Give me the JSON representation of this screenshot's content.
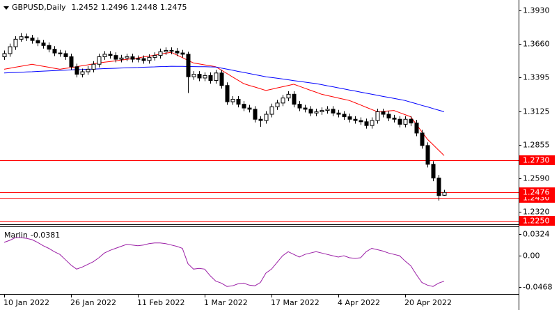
{
  "chart_data": {
    "type": "candlestick",
    "title": "GBPUSD,Daily",
    "categories": [
      "10 Jan 2022",
      null,
      null,
      null,
      null,
      null,
      null,
      null,
      null,
      null,
      null,
      null,
      "26 Jan 2022",
      null,
      null,
      null,
      null,
      null,
      null,
      null,
      null,
      null,
      null,
      null,
      "11 Feb 2022",
      null,
      null,
      null,
      null,
      null,
      null,
      null,
      null,
      null,
      null,
      null,
      "1 Mar 2022",
      null,
      null,
      null,
      null,
      null,
      null,
      null,
      null,
      null,
      null,
      null,
      "17 Mar 2022",
      null,
      null,
      null,
      null,
      null,
      null,
      null,
      null,
      null,
      null,
      null,
      "4 Apr 2022",
      null,
      null,
      null,
      null,
      null,
      null,
      null,
      null,
      null,
      null,
      null,
      "20 Apr 2022",
      null,
      null,
      null,
      null,
      null,
      null,
      null
    ],
    "open": [
      1.356,
      1.3585,
      1.364,
      1.37,
      1.372,
      1.371,
      1.369,
      1.367,
      1.365,
      1.362,
      1.359,
      1.3585,
      1.356,
      1.348,
      1.342,
      1.344,
      1.346,
      1.35,
      1.356,
      1.358,
      1.357,
      1.354,
      1.355,
      1.356,
      1.354,
      1.3545,
      1.353,
      1.3555,
      1.357,
      1.36,
      1.361,
      1.3605,
      1.359,
      1.358,
      1.34,
      1.342,
      1.339,
      1.341,
      1.337,
      1.343,
      1.333,
      1.32,
      1.322,
      1.318,
      1.315,
      1.314,
      1.306,
      1.305,
      1.31,
      1.316,
      1.319,
      1.323,
      1.326,
      1.318,
      1.315,
      1.314,
      1.311,
      1.312,
      1.313,
      1.314,
      1.311,
      1.31,
      1.308,
      1.306,
      1.305,
      1.304,
      1.301,
      1.305,
      1.312,
      1.31,
      1.307,
      1.306,
      1.302,
      1.306,
      1.303,
      1.295,
      1.285,
      1.27,
      1.259,
      1.2452
    ],
    "high": [
      1.361,
      1.3665,
      1.3725,
      1.375,
      1.3745,
      1.3735,
      1.3715,
      1.3695,
      1.3675,
      1.3645,
      1.3615,
      1.361,
      1.3585,
      1.3505,
      1.3465,
      1.3485,
      1.3525,
      1.3585,
      1.3605,
      1.3605,
      1.3595,
      1.3575,
      1.3585,
      1.3585,
      1.357,
      1.357,
      1.358,
      1.3595,
      1.3625,
      1.3635,
      1.3635,
      1.363,
      1.3615,
      1.36,
      1.3445,
      1.3445,
      1.3435,
      1.3435,
      1.3455,
      1.3455,
      1.3355,
      1.3245,
      1.3245,
      1.3205,
      1.3175,
      1.3165,
      1.3085,
      1.3125,
      1.3185,
      1.3215,
      1.3255,
      1.3285,
      1.3285,
      1.3205,
      1.3175,
      1.3165,
      1.3145,
      1.3155,
      1.3165,
      1.3165,
      1.3135,
      1.3125,
      1.3105,
      1.3085,
      1.3075,
      1.3065,
      1.3075,
      1.3145,
      1.3145,
      1.3125,
      1.3095,
      1.3085,
      1.3085,
      1.3085,
      1.3055,
      1.2975,
      1.2875,
      1.2725,
      1.2615,
      1.2496
    ],
    "low": [
      1.3535,
      1.356,
      1.3615,
      1.368,
      1.3685,
      1.3665,
      1.3645,
      1.3625,
      1.3595,
      1.3565,
      1.356,
      1.3535,
      1.3455,
      1.3395,
      1.3395,
      1.3415,
      1.3435,
      1.3475,
      1.3535,
      1.3545,
      1.3515,
      1.3515,
      1.3525,
      1.3515,
      1.3515,
      1.3505,
      1.3505,
      1.353,
      1.3545,
      1.3575,
      1.358,
      1.3565,
      1.3555,
      1.327,
      1.3375,
      1.3365,
      1.3365,
      1.3345,
      1.3345,
      1.3305,
      1.3175,
      1.3175,
      1.3155,
      1.3125,
      1.3115,
      1.3035,
      1.3,
      1.3025,
      1.3075,
      1.3135,
      1.3165,
      1.3205,
      1.3155,
      1.3125,
      1.3115,
      1.3085,
      1.3085,
      1.3095,
      1.3105,
      1.3085,
      1.3075,
      1.3055,
      1.3035,
      1.3025,
      1.3015,
      1.2985,
      1.2985,
      1.3025,
      1.3075,
      1.3045,
      1.3035,
      1.2995,
      1.2995,
      1.3005,
      1.2925,
      1.2825,
      1.2675,
      1.2565,
      1.241,
      1.2448
    ],
    "close": [
      1.3585,
      1.364,
      1.37,
      1.372,
      1.371,
      1.369,
      1.367,
      1.365,
      1.362,
      1.359,
      1.3585,
      1.356,
      1.348,
      1.342,
      1.344,
      1.346,
      1.35,
      1.356,
      1.358,
      1.357,
      1.354,
      1.355,
      1.356,
      1.354,
      1.3545,
      1.353,
      1.3555,
      1.357,
      1.36,
      1.361,
      1.3605,
      1.359,
      1.358,
      1.34,
      1.342,
      1.339,
      1.341,
      1.337,
      1.343,
      1.333,
      1.32,
      1.322,
      1.318,
      1.315,
      1.314,
      1.306,
      1.305,
      1.31,
      1.316,
      1.319,
      1.323,
      1.326,
      1.318,
      1.315,
      1.314,
      1.311,
      1.312,
      1.313,
      1.314,
      1.311,
      1.31,
      1.308,
      1.306,
      1.305,
      1.304,
      1.301,
      1.305,
      1.312,
      1.31,
      1.307,
      1.306,
      1.302,
      1.306,
      1.303,
      1.295,
      1.285,
      1.27,
      1.259,
      1.245,
      1.2475
    ],
    "up_color": "#ffffff",
    "down_color": "#000000",
    "lines": [
      {
        "color": "#ff0000",
        "values": [
          1.346,
          1.3468,
          1.3476,
          1.3484,
          1.3492,
          1.35,
          1.3492,
          1.3484,
          1.3476,
          1.3468,
          1.346,
          1.3467,
          1.3473,
          1.348,
          1.3488,
          1.3495,
          1.3503,
          1.351,
          1.3516,
          1.3521,
          1.3527,
          1.3533,
          1.3539,
          1.3544,
          1.355,
          1.3558,
          1.3565,
          1.3573,
          1.358,
          1.3588,
          1.3595,
          1.3574,
          1.3553,
          1.3531,
          1.351,
          1.3503,
          1.3495,
          1.3488,
          1.348,
          1.3453,
          1.3426,
          1.3399,
          1.3372,
          1.3345,
          1.3331,
          1.3318,
          1.3304,
          1.329,
          1.33,
          1.331,
          1.332,
          1.333,
          1.334,
          1.3324,
          1.3308,
          1.3292,
          1.3276,
          1.326,
          1.325,
          1.324,
          1.323,
          1.322,
          1.321,
          1.3192,
          1.3174,
          1.3156,
          1.3138,
          1.312,
          1.3123,
          1.3127,
          1.313,
          1.3113,
          1.3097,
          1.308,
          1.302,
          1.296,
          1.29,
          1.2857,
          1.2813,
          1.277
        ]
      },
      {
        "color": "#0000ff",
        "values": [
          1.343,
          1.3432,
          1.3434,
          1.3436,
          1.3438,
          1.344,
          1.3443,
          1.3445,
          1.3447,
          1.3449,
          1.3451,
          1.3453,
          1.3455,
          1.3457,
          1.3458,
          1.346,
          1.3461,
          1.3463,
          1.3465,
          1.3466,
          1.3468,
          1.347,
          1.3471,
          1.3473,
          1.3474,
          1.3476,
          1.3478,
          1.3479,
          1.3481,
          1.3482,
          1.3484,
          1.3483,
          1.3483,
          1.3482,
          1.3481,
          1.348,
          1.348,
          1.3479,
          1.3478,
          1.3469,
          1.3461,
          1.3452,
          1.3443,
          1.3435,
          1.3426,
          1.3417,
          1.3409,
          1.34,
          1.3394,
          1.3388,
          1.3382,
          1.3376,
          1.3369,
          1.3363,
          1.3357,
          1.3351,
          1.3345,
          1.3337,
          1.3328,
          1.332,
          1.3311,
          1.3303,
          1.3294,
          1.3286,
          1.3277,
          1.3269,
          1.326,
          1.3252,
          1.3243,
          1.3235,
          1.3227,
          1.3218,
          1.321,
          1.3197,
          1.3184,
          1.3171,
          1.3159,
          1.3146,
          1.3133,
          1.312
        ]
      }
    ],
    "ylim": [
      1.222,
      1.3997
    ],
    "yticks": [
      {
        "value": 1.393,
        "label": "1.3930"
      },
      {
        "value": 1.366,
        "label": "1.3660"
      },
      1.3395,
      1.3125,
      1.2855,
      {
        "value": 1.259,
        "label": "1.2590"
      },
      {
        "value": 1.232,
        "label": "1.2320"
      }
    ],
    "levels": [
      {
        "value": 1.273,
        "label": "1.2730"
      },
      {
        "value": 1.243,
        "label": "1.2430"
      },
      1.2476,
      {
        "value": 1.225,
        "label": "1.2250"
      }
    ],
    "level_color": "#ff0000",
    "indicator": {
      "name": "Marlin",
      "color": "#9b1fa6",
      "values": [
        0.02,
        0.023,
        0.027,
        0.027,
        0.026,
        0.024,
        0.02,
        0.015,
        0.011,
        0.006,
        0.002,
        -0.006,
        -0.014,
        -0.02,
        -0.017,
        -0.013,
        -0.009,
        -0.003,
        0.004,
        0.008,
        0.011,
        0.014,
        0.017,
        0.016,
        0.015,
        0.016,
        0.018,
        0.019,
        0.019,
        0.018,
        0.016,
        0.014,
        0.011,
        -0.012,
        -0.02,
        -0.019,
        -0.02,
        -0.03,
        -0.038,
        -0.041,
        -0.046,
        -0.045,
        -0.042,
        -0.041,
        -0.044,
        -0.045,
        -0.04,
        -0.026,
        -0.02,
        -0.01,
        0.0,
        0.006,
        0.002,
        -0.002,
        0.002,
        0.004,
        0.006,
        0.004,
        0.002,
        0.0,
        -0.002,
        0.0,
        -0.003,
        -0.004,
        -0.003,
        0.006,
        0.011,
        0.009,
        0.007,
        0.004,
        0.002,
        0.0,
        -0.008,
        -0.015,
        -0.028,
        -0.04,
        -0.044,
        -0.046,
        -0.041,
        -0.0381
      ],
      "ylim": [
        -0.0572,
        0.0428
      ],
      "yticks": [
        0.0324,
        {
          "value": 0,
          "label": "0.00"
        },
        -0.0468
      ]
    }
  }
}
